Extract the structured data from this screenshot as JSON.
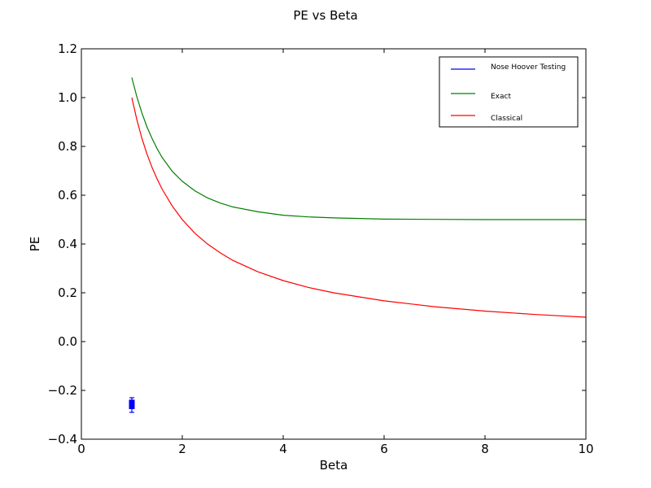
{
  "chart_data": {
    "type": "line",
    "title": "PE vs Beta",
    "xlabel": "Beta",
    "ylabel": "PE",
    "xlim": [
      0,
      10
    ],
    "ylim": [
      -0.4,
      1.2
    ],
    "xticks": [
      0,
      2,
      4,
      6,
      8,
      10
    ],
    "xtick_labels": [
      "0",
      "2",
      "4",
      "6",
      "8",
      "10"
    ],
    "yticks": [
      -0.4,
      -0.2,
      0.0,
      0.2,
      0.4,
      0.6,
      0.8,
      1.0,
      1.2
    ],
    "ytick_labels": [
      "−0.4",
      "−0.2",
      "0.0",
      "0.2",
      "0.4",
      "0.6",
      "0.8",
      "1.0",
      "1.2"
    ],
    "grid": false,
    "legend_position": "top-right",
    "series": [
      {
        "name": "Nose Hoover Testing",
        "color": "#0000ff",
        "style": "errorbar-points",
        "points": [
          {
            "x": 1.0,
            "y": -0.25,
            "yerr": 0.02
          },
          {
            "x": 1.0,
            "y": -0.265,
            "yerr": 0.025
          }
        ]
      },
      {
        "name": "Exact",
        "color": "#008000",
        "style": "line",
        "x": [
          1.0,
          1.1,
          1.2,
          1.3,
          1.4,
          1.5,
          1.6,
          1.8,
          2.0,
          2.25,
          2.5,
          2.75,
          3.0,
          3.5,
          4.0,
          4.5,
          5.0,
          6.0,
          7.0,
          8.0,
          9.0,
          10.0
        ],
        "y": [
          1.082,
          1.003,
          0.937,
          0.88,
          0.833,
          0.791,
          0.755,
          0.698,
          0.657,
          0.618,
          0.589,
          0.568,
          0.552,
          0.532,
          0.518,
          0.511,
          0.507,
          0.502,
          0.501,
          0.5,
          0.5,
          0.5
        ]
      },
      {
        "name": "Classical",
        "color": "#ff0000",
        "style": "line",
        "x": [
          1.0,
          1.1,
          1.2,
          1.3,
          1.4,
          1.5,
          1.6,
          1.8,
          2.0,
          2.25,
          2.5,
          2.75,
          3.0,
          3.5,
          4.0,
          4.5,
          5.0,
          6.0,
          7.0,
          8.0,
          9.0,
          10.0
        ],
        "y": [
          1.0,
          0.909,
          0.833,
          0.769,
          0.714,
          0.667,
          0.625,
          0.556,
          0.5,
          0.444,
          0.4,
          0.364,
          0.333,
          0.286,
          0.25,
          0.222,
          0.2,
          0.167,
          0.143,
          0.125,
          0.111,
          0.1
        ]
      }
    ]
  }
}
